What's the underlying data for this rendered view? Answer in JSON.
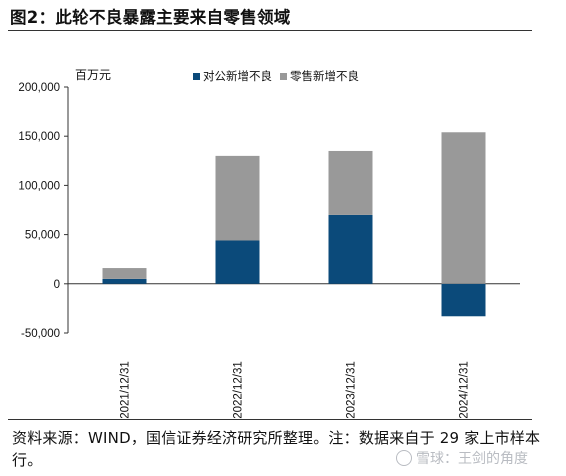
{
  "figure": {
    "title": "图2：此轮不良暴露主要来自零售领域",
    "source_note": "资料来源：WIND，国信证券经济研究所整理。注：数据来自于 29 家上市样本行。",
    "watermark": "雪球：王剑的角度"
  },
  "chart_data": {
    "type": "bar",
    "stacked": true,
    "unit_label": "百万元",
    "categories": [
      "2021/12/31",
      "2022/12/31",
      "2023/12/31",
      "2024/12/31"
    ],
    "series": [
      {
        "name": "对公新增不良",
        "color": "#0b4a7a",
        "values": [
          5000,
          44000,
          70000,
          -33000
        ]
      },
      {
        "name": "零售新增不良",
        "color": "#999999",
        "values": [
          11000,
          86000,
          65000,
          154000
        ]
      }
    ],
    "ylim": [
      -50000,
      200000
    ],
    "yticks": [
      -50000,
      0,
      50000,
      100000,
      150000,
      200000
    ],
    "ytick_labels": [
      "-50,000",
      "0",
      "50,000",
      "100,000",
      "150,000",
      "200,000"
    ],
    "legend_position": "top-center",
    "grid": false
  }
}
